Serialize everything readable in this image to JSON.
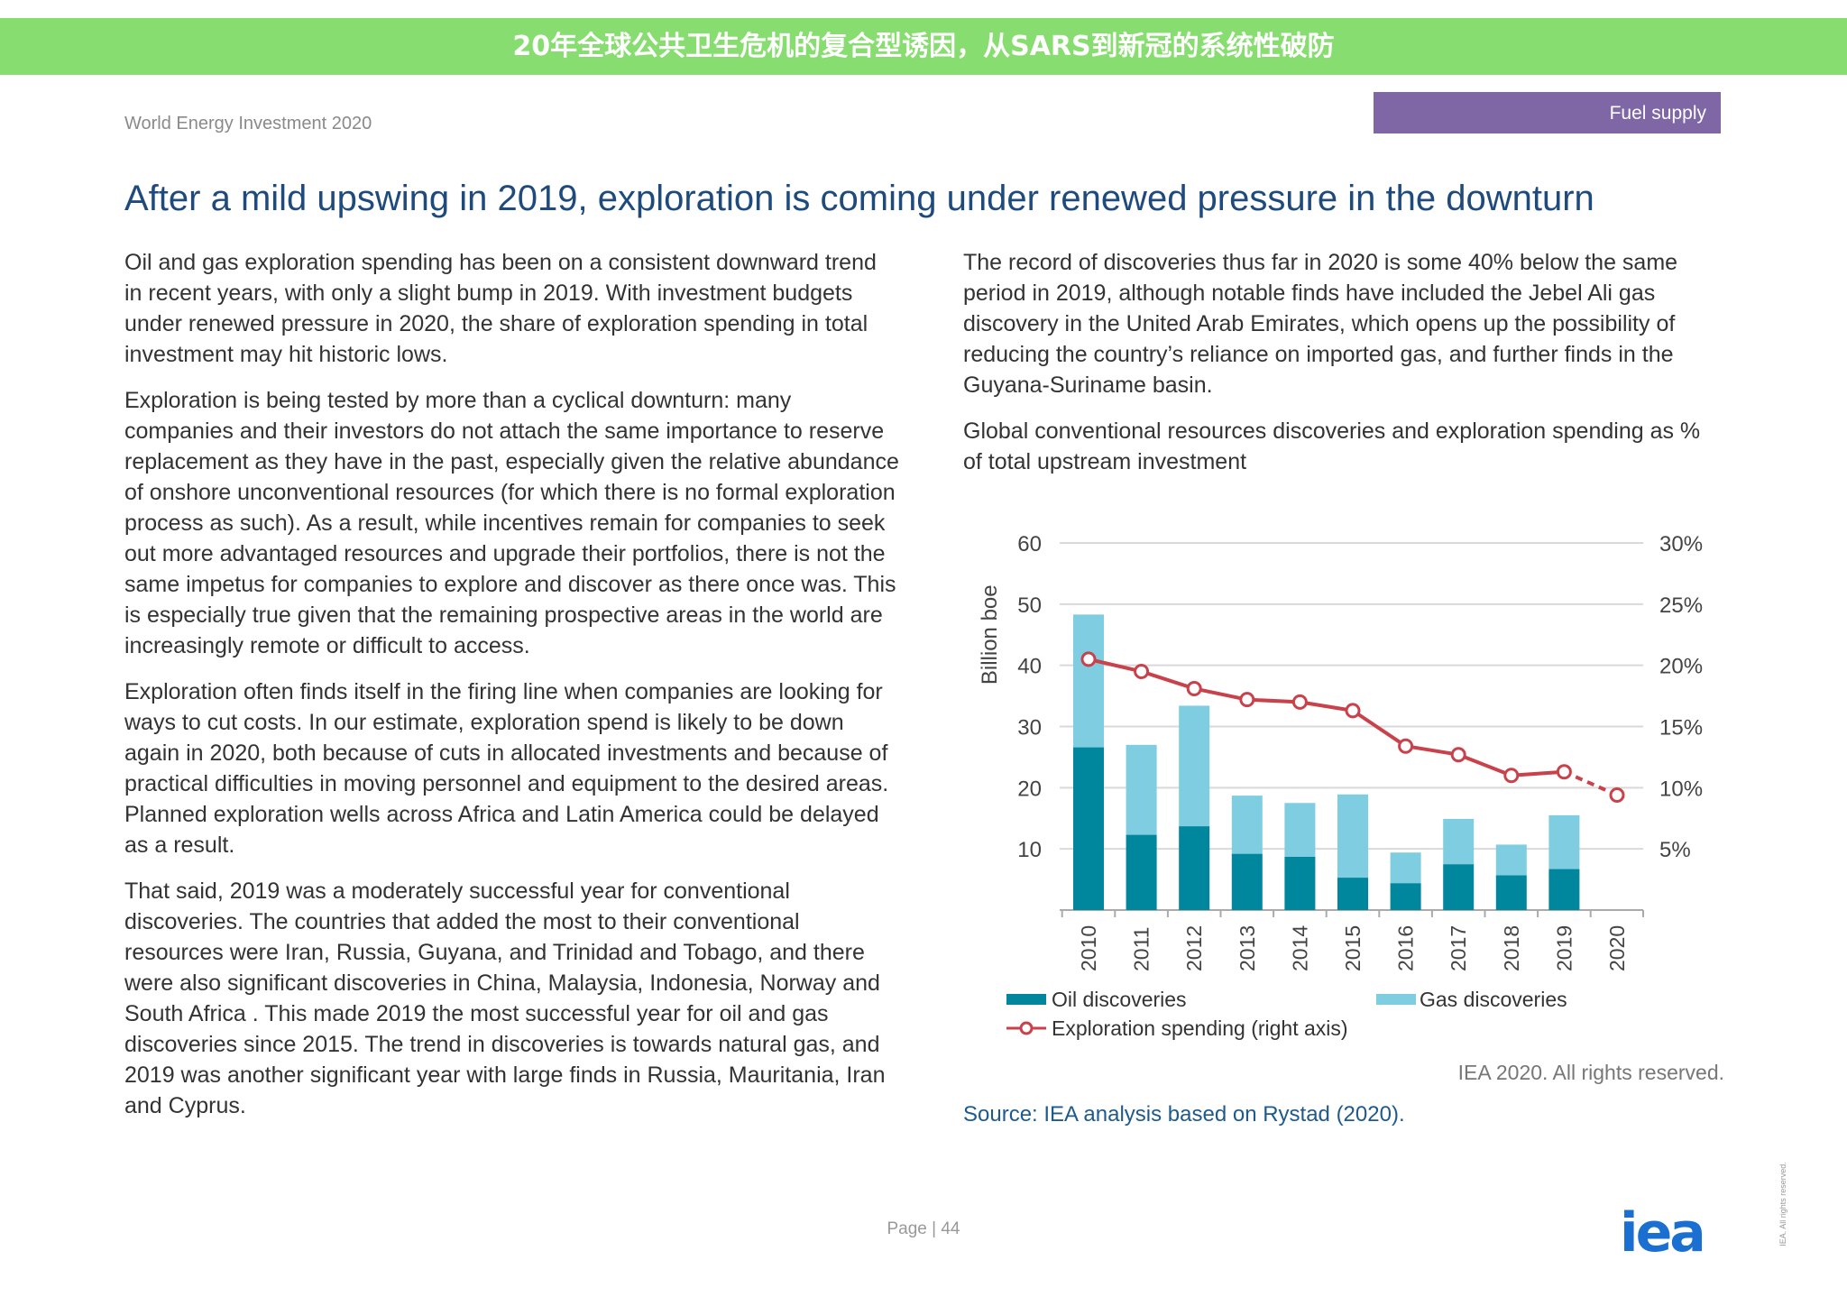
{
  "header": {
    "doc_title": "World Energy Investment 2020",
    "section_tag": "Fuel supply"
  },
  "title": "After a mild upswing in 2019, exploration is coming under renewed pressure in the downturn",
  "left_column": [
    "Oil and gas exploration spending has been on a consistent downward trend in recent years, with only a slight bump in 2019. With investment budgets under renewed pressure in 2020, the share of exploration spending in total investment may hit historic lows.",
    "Exploration is being tested by more than a cyclical downturn: many companies and their investors do not attach the same importance to reserve replacement as they have in the past, especially given the relative abundance of onshore unconventional resources (for which there is no formal exploration process as such). As a result, while incentives remain for companies to seek out more advantaged resources and upgrade their portfolios, there is not the same impetus for companies to explore and discover as there once was. This is especially true given that the remaining prospective areas in the world are increasingly remote or difficult to access.",
    "Exploration often finds itself in the firing line when companies are looking for ways to cut costs. In our estimate, exploration spend is likely to be down again in 2020, both because of cuts in allocated investments and because of practical difficulties in moving personnel and equipment to the desired areas. Planned exploration wells across Africa and Latin America could be delayed as a result.",
    "That said, 2019 was a moderately successful year for conventional discoveries. The countries that added the most to their conventional resources were Iran, Russia, Guyana, and Trinidad and Tobago, and there were also significant discoveries in China, Malaysia, Indonesia, Norway and South Africa . This made 2019 the most successful year for oil and gas discoveries since 2015. The trend in discoveries is towards natural gas, and 2019 was another significant year with large finds in Russia, Mauritania, Iran and Cyprus."
  ],
  "right_column": [
    "The record of discoveries thus far in 2020 is some 40% below the same period in 2019, although notable finds have included the Jebel Ali gas discovery in the United Arab Emirates, which opens up the possibility of reducing the country’s reliance on imported gas, and further finds in the Guyana-Suriname basin.",
    "Global conventional resources discoveries and exploration spending as % of total upstream investment"
  ],
  "chart_data": {
    "type": "bar",
    "categories": [
      "2010",
      "2011",
      "2012",
      "2013",
      "2014",
      "2015",
      "2016",
      "2017",
      "2018",
      "2019",
      "2020"
    ],
    "ylabel": "Billion boe",
    "ylim": [
      0,
      60
    ],
    "yticks": [
      "10",
      "20",
      "30",
      "40",
      "50",
      "60"
    ],
    "y2lim": [
      0,
      30
    ],
    "y2ticks": [
      "5%",
      "10%",
      "15%",
      "20%",
      "25%",
      "30%"
    ],
    "grid": true,
    "legend_position": "bottom",
    "stacked": true,
    "series": [
      {
        "name": "Oil discoveries",
        "type": "bar",
        "color": "#00879e",
        "values": [
          26.6,
          12.3,
          13.7,
          9.2,
          8.7,
          5.3,
          4.4,
          7.5,
          5.7,
          6.7,
          null
        ]
      },
      {
        "name": "Gas discoveries",
        "type": "bar",
        "color": "#7fcde0",
        "values": [
          21.7,
          14.7,
          19.7,
          9.5,
          8.8,
          13.6,
          5.0,
          7.4,
          5.0,
          8.8,
          null
        ]
      },
      {
        "name": "Exploration spending (right axis)",
        "type": "line",
        "axis": "right",
        "color": "#c9414a",
        "values": [
          20.5,
          19.5,
          18.1,
          17.2,
          17.0,
          16.3,
          13.4,
          12.7,
          11.0,
          11.3,
          9.4
        ],
        "dashed_from": "2019"
      }
    ]
  },
  "rights": "IEA 2020. All rights reserved.",
  "source": "Source: IEA analysis based on Rystad (2020).",
  "page": "Page | 44",
  "logo": "iea",
  "vertical_note": "IEA. All rights reserved.",
  "banner": "20年全球公共卫生危机的复合型诱因，从SARS到新冠的系统性破防"
}
